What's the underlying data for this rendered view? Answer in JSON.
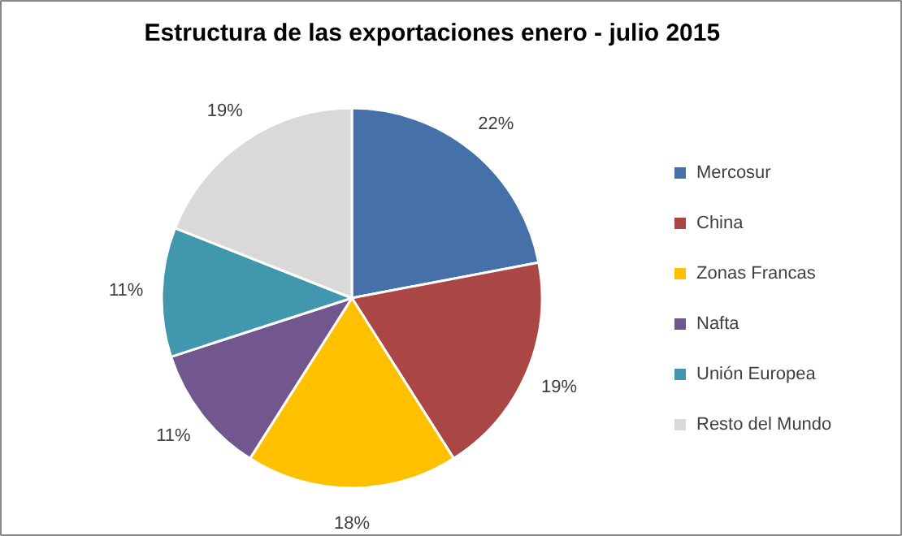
{
  "chart_data": {
    "type": "pie",
    "title": "Estructura  de las exportaciones enero - julio 2015",
    "categories": [
      "Mercosur",
      "China",
      "Zonas Francas",
      "Nafta",
      "Unión Europea",
      "Resto del Mundo"
    ],
    "values": [
      22,
      19,
      18,
      11,
      11,
      19
    ],
    "colors": [
      "#4570a8",
      "#aa4644",
      "#ffc000",
      "#72578f",
      "#4198ae",
      "#d9d9d9"
    ],
    "value_labels": [
      "22%",
      "19%",
      "18%",
      "11%",
      "11%",
      "19%"
    ],
    "legend": "right"
  }
}
